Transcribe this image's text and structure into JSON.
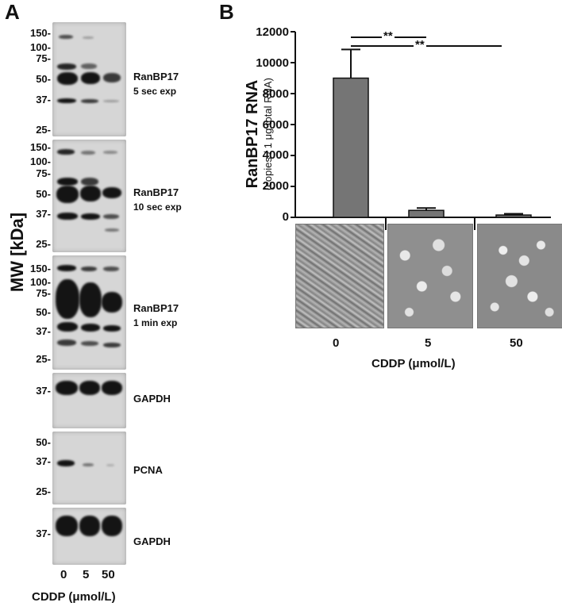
{
  "panel_a": {
    "letter": "A",
    "axis_label": "MW [kDa]",
    "xlabel": "CDDP (μmol/L)",
    "lanes": [
      "0",
      "5",
      "50"
    ],
    "blots": [
      {
        "label_line1": "RanBP17",
        "label_line2": "5 sec exp",
        "markers": [
          "150-",
          "100-",
          "75-",
          "50-",
          "37-",
          "25-"
        ]
      },
      {
        "label_line1": "RanBP17",
        "label_line2": "10 sec exp",
        "markers": [
          "150-",
          "100-",
          "75-",
          "50-",
          "37-",
          "25-"
        ]
      },
      {
        "label_line1": "RanBP17",
        "label_line2": "1 min exp",
        "markers": [
          "150-",
          "100-",
          "75-",
          "50-",
          "37-",
          "25-"
        ]
      },
      {
        "label_line1": "GAPDH",
        "label_line2": "",
        "markers": [
          "37-"
        ]
      },
      {
        "label_line1": "PCNA",
        "label_line2": "",
        "markers": [
          "50-",
          "37-",
          "25-"
        ]
      },
      {
        "label_line1": "GAPDH",
        "label_line2": "",
        "markers": [
          "37-"
        ]
      }
    ]
  },
  "panel_b": {
    "letter": "B",
    "ylabel_main": "RanBP17 RNA",
    "ylabel_sub": "(copies / 1 μg total RNA)",
    "xlabel": "CDDP (μmol/L)",
    "significance": [
      "**",
      "**"
    ]
  },
  "chart_data": {
    "type": "bar",
    "categories": [
      "0",
      "5",
      "50"
    ],
    "values": [
      9000,
      450,
      150
    ],
    "errors": [
      1850,
      150,
      80
    ],
    "ylim": [
      0,
      12000
    ],
    "yticks": [
      "0",
      "2000",
      "4000",
      "6000",
      "8000",
      "10000",
      "12000"
    ],
    "ylabel": "RanBP17 RNA (copies / 1 μg total RNA)",
    "xlabel": "CDDP (μmol/L)",
    "bar_color": "#757575"
  }
}
